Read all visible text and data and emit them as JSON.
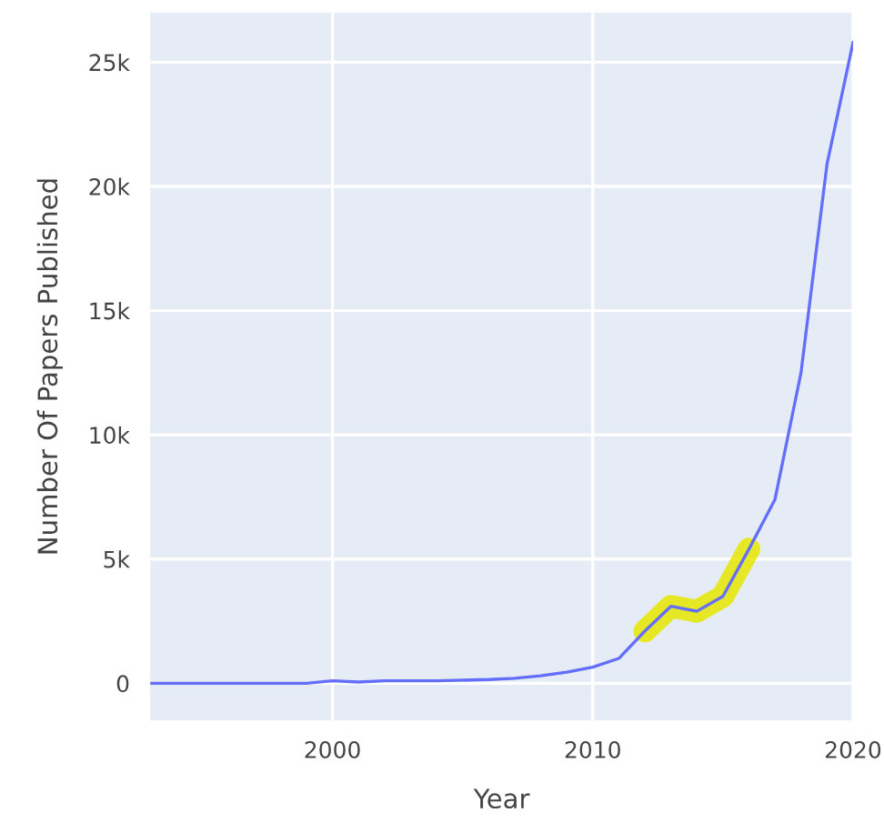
{
  "chart_data": {
    "type": "line",
    "xlabel": "Year",
    "ylabel": "Number Of Papers Published",
    "xlim": [
      1993,
      2020
    ],
    "xticks": [
      2000,
      2010,
      2020
    ],
    "ylim": [
      -1500,
      27000
    ],
    "yticks": [
      {
        "value": 0,
        "label": "0"
      },
      {
        "value": 5000,
        "label": "5k"
      },
      {
        "value": 10000,
        "label": "10k"
      },
      {
        "value": 15000,
        "label": "15k"
      },
      {
        "value": 20000,
        "label": "20k"
      },
      {
        "value": 25000,
        "label": "25k"
      }
    ],
    "grid": true,
    "legend": false,
    "series": [
      {
        "color": "#636efa",
        "x": [
          1993,
          1995,
          1997,
          1999,
          2000,
          2001,
          2002,
          2004,
          2006,
          2007,
          2008,
          2009,
          2010,
          2011,
          2012,
          2013,
          2014,
          2015,
          2016,
          2017,
          2018,
          2019,
          2020
        ],
        "values": [
          0,
          0,
          0,
          0,
          100,
          50,
          100,
          100,
          150,
          200,
          300,
          450,
          650,
          1000,
          2100,
          3100,
          2900,
          3500,
          5400,
          7400,
          12500,
          20900,
          25800
        ]
      },
      {
        "color": "#e8e800",
        "x": [
          2012,
          2013,
          2014,
          2015,
          2016
        ],
        "values": [
          2100,
          3100,
          2900,
          3500,
          5400
        ]
      }
    ]
  }
}
